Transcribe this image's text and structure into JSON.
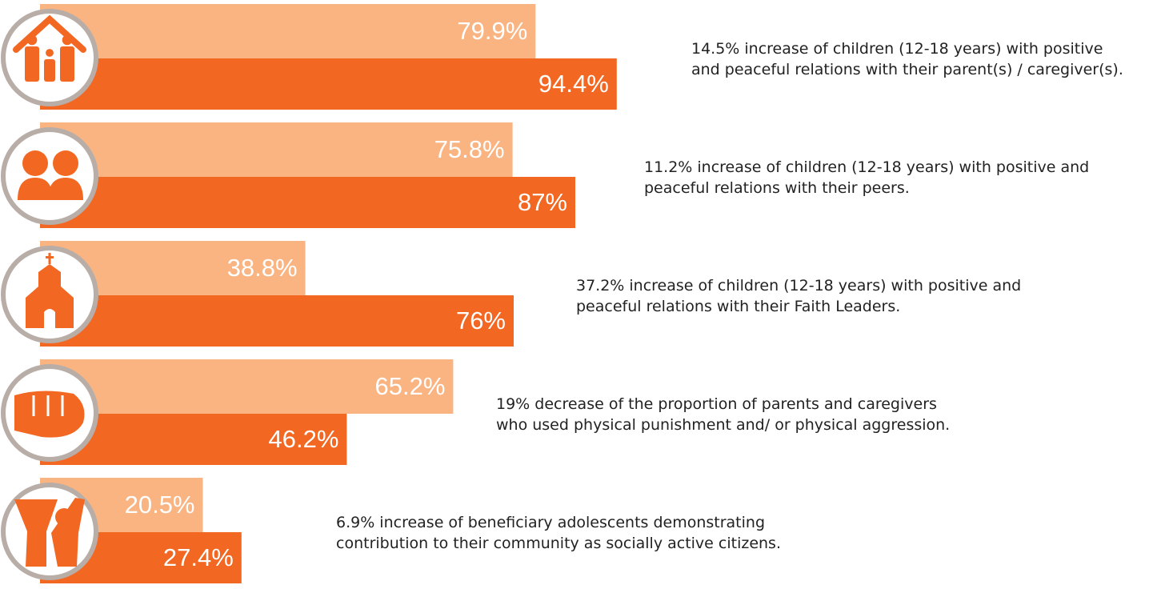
{
  "rows": [
    {
      "values": [
        79.9,
        94.4
      ],
      "value_labels": [
        "79.9%",
        "94.4%"
      ],
      "description": [
        "14.5% increase of children (12-18 years) with positive",
        "and peaceful relations with their parent(s) / caregiver(s)."
      ]
    },
    {
      "values": [
        75.8,
        87
      ],
      "value_labels": [
        "75.8%",
        "87%"
      ],
      "description": [
        "11.2% increase of children (12-18 years) with positive and",
        "peaceful relations with their peers."
      ]
    },
    {
      "values": [
        38.8,
        76
      ],
      "value_labels": [
        "38.8%",
        "76%"
      ],
      "description": [
        "37.2% increase of children (12-18 years) with positive and",
        "peaceful relations with their Faith Leaders."
      ]
    },
    {
      "values": [
        65.2,
        46.2
      ],
      "value_labels": [
        "65.2%",
        "46.2%"
      ],
      "description": [
        "19% decrease of the proportion of parents and caregivers",
        "who used physical punishment and/ or physical aggression."
      ]
    },
    {
      "values": [
        20.5,
        27.4
      ],
      "value_labels": [
        "20.5%",
        "27.4%"
      ],
      "description": [
        "6.9% increase of beneficiary adolescents demonstrating",
        "contribution to their community as socially active citizens."
      ]
    }
  ],
  "colors": [
    "#f9b482",
    "#f26722"
  ]
}
